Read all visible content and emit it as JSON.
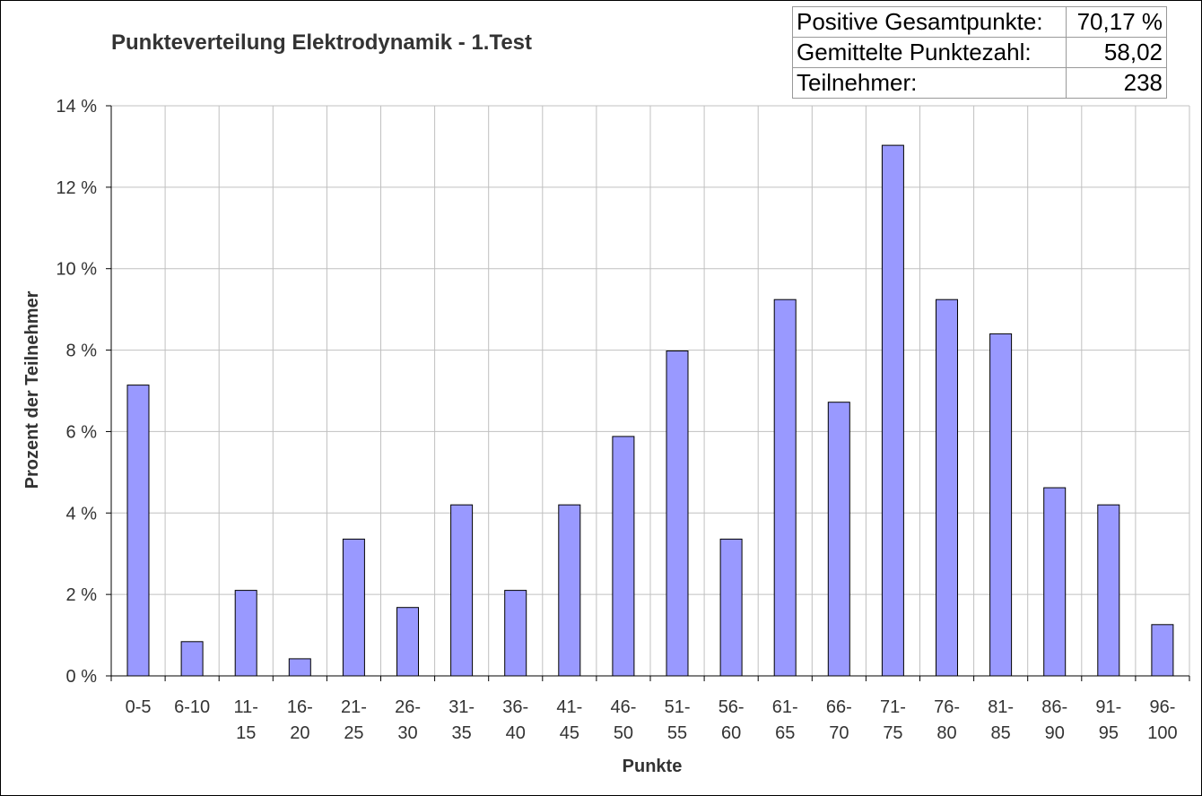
{
  "chart_data": {
    "type": "bar",
    "title": "Punkteverteilung Elektrodynamik - 1.Test",
    "xlabel": "Punkte",
    "ylabel": "Prozent der Teilnehmer",
    "categories": [
      [
        "0-5"
      ],
      [
        "6-10"
      ],
      [
        "11-",
        "15"
      ],
      [
        "16-",
        "20"
      ],
      [
        "21-",
        "25"
      ],
      [
        "26-",
        "30"
      ],
      [
        "31-",
        "35"
      ],
      [
        "36-",
        "40"
      ],
      [
        "41-",
        "45"
      ],
      [
        "46-",
        "50"
      ],
      [
        "51-",
        "55"
      ],
      [
        "56-",
        "60"
      ],
      [
        "61-",
        "65"
      ],
      [
        "66-",
        "70"
      ],
      [
        "71-",
        "75"
      ],
      [
        "76-",
        "80"
      ],
      [
        "81-",
        "85"
      ],
      [
        "86-",
        "90"
      ],
      [
        "91-",
        "95"
      ],
      [
        "96-",
        "100"
      ]
    ],
    "values": [
      7.14,
      0.84,
      2.1,
      0.42,
      3.36,
      1.68,
      4.2,
      2.1,
      4.2,
      5.88,
      7.98,
      3.36,
      9.24,
      6.72,
      13.03,
      9.24,
      8.4,
      4.62,
      4.2,
      1.26
    ],
    "ylim": [
      0,
      14
    ],
    "yticks": [
      "0 %",
      "2 %",
      "4 %",
      "6 %",
      "8 %",
      "10 %",
      "12 %",
      "14 %"
    ],
    "grid": true,
    "bar_color": "#9999ff",
    "legend": "none"
  },
  "stats": [
    {
      "label": "Positive Gesamtpunkte:",
      "value": "70,17 %"
    },
    {
      "label": "Gemittelte Punktezahl:",
      "value": "58,02"
    },
    {
      "label": "Teilnehmer:",
      "value": "238"
    }
  ]
}
